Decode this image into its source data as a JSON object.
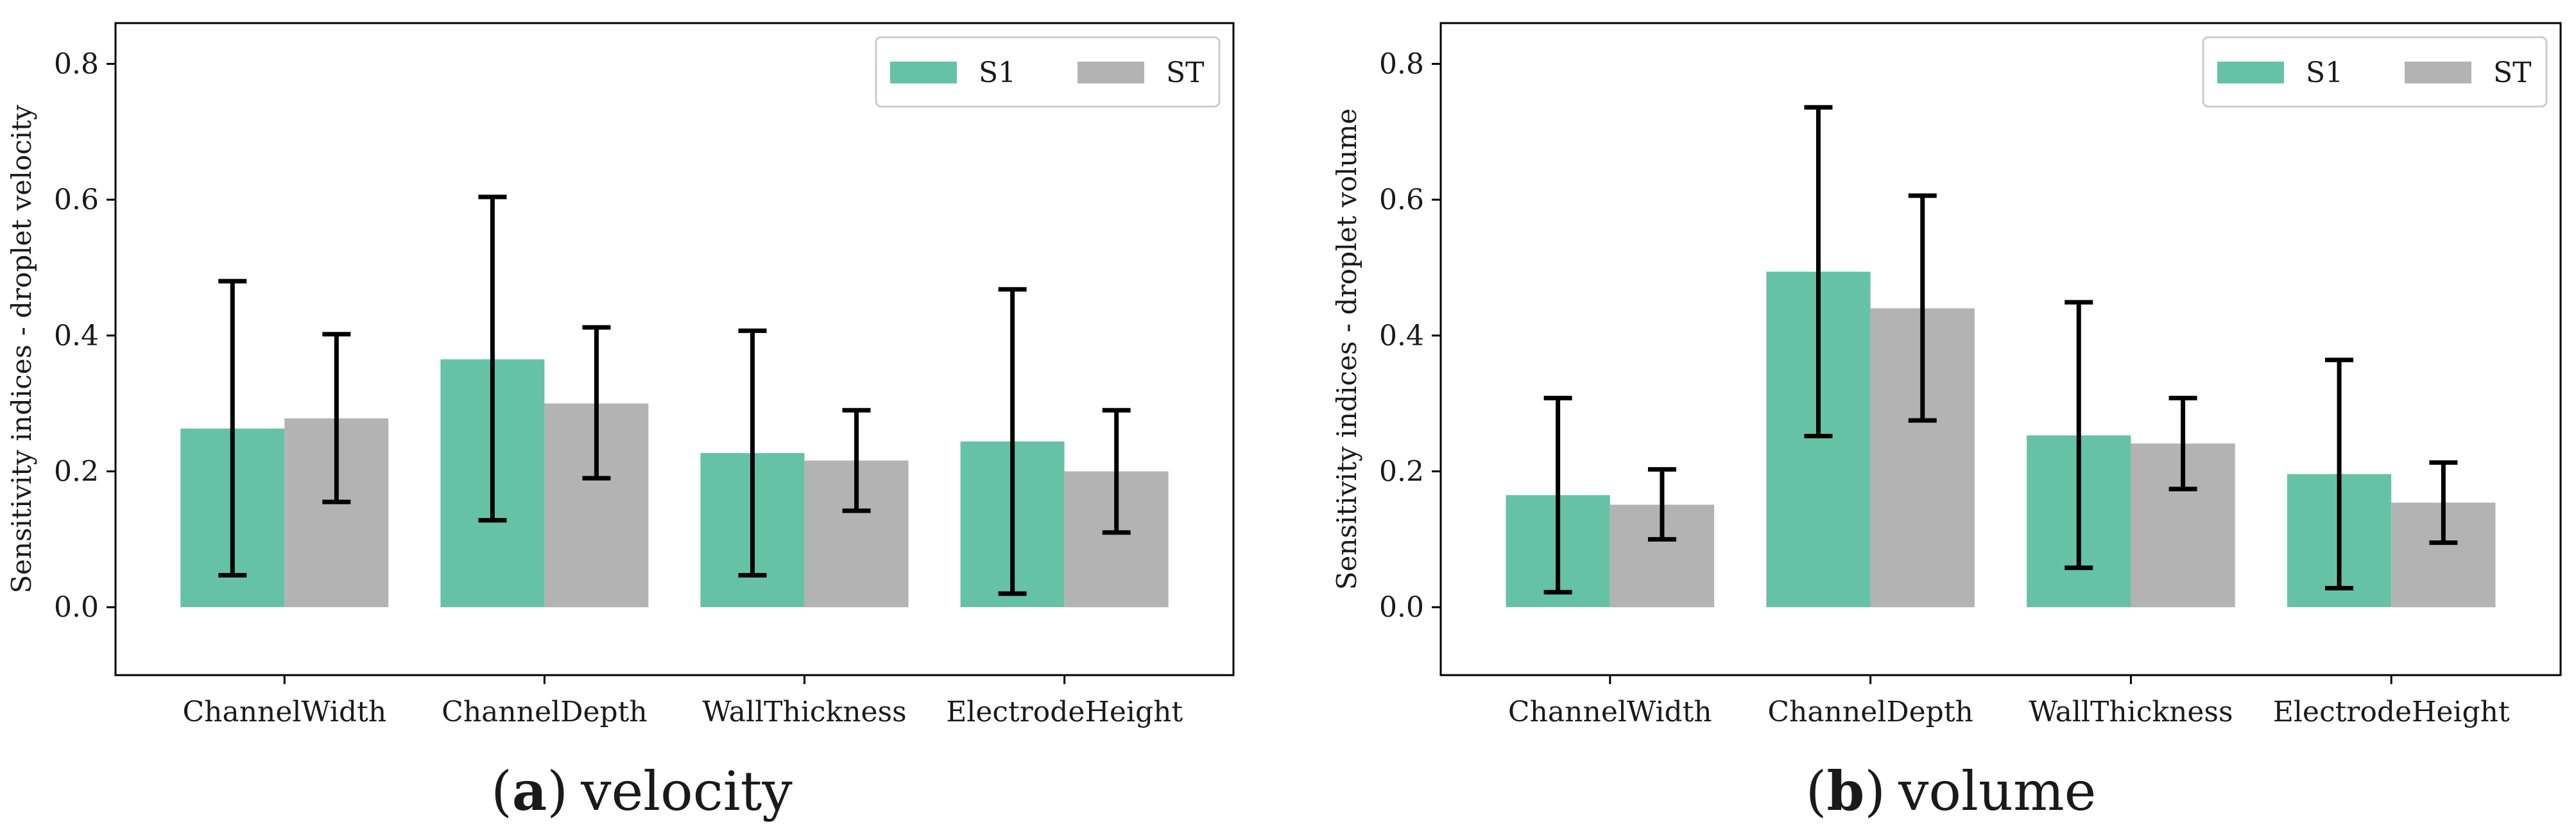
{
  "colors": {
    "S1": "#66c2a5",
    "ST": "#b3b3b3",
    "error_bar": "#000000",
    "axes": "#000000",
    "legend_border": "#cccccc"
  },
  "captions": [
    {
      "open": "(",
      "letter": "a",
      "close": ")",
      "text": "velocity"
    },
    {
      "open": "(",
      "letter": "b",
      "close": ")",
      "text": "volume"
    }
  ],
  "chart_data": [
    {
      "type": "bar",
      "title": "",
      "xlabel": "",
      "ylabel": "Sensitivity indices - droplet velocity",
      "categories": [
        "ChannelWidth",
        "ChannelDepth",
        "WallThickness",
        "ElectrodeHeight"
      ],
      "ylim": [
        -0.1,
        0.86
      ],
      "yticks": [
        0.0,
        0.2,
        0.4,
        0.6,
        0.8
      ],
      "ytick_labels": [
        "0.0",
        "0.2",
        "0.4",
        "0.6",
        "0.8"
      ],
      "grid": false,
      "legend_position": "top-right",
      "series": [
        {
          "name": "S1",
          "values": [
            0.263,
            0.365,
            0.227,
            0.244
          ],
          "error_low": [
            0.047,
            0.128,
            0.047,
            0.02
          ],
          "error_high": [
            0.48,
            0.604,
            0.407,
            0.468
          ]
        },
        {
          "name": "ST",
          "values": [
            0.278,
            0.3,
            0.216,
            0.2
          ],
          "error_low": [
            0.155,
            0.19,
            0.142,
            0.11
          ],
          "error_high": [
            0.402,
            0.412,
            0.29,
            0.29
          ]
        }
      ]
    },
    {
      "type": "bar",
      "title": "",
      "xlabel": "",
      "ylabel": "Sensitivity indices - droplet volume",
      "categories": [
        "ChannelWidth",
        "ChannelDepth",
        "WallThickness",
        "ElectrodeHeight"
      ],
      "ylim": [
        -0.1,
        0.86
      ],
      "yticks": [
        0.0,
        0.2,
        0.4,
        0.6,
        0.8
      ],
      "ytick_labels": [
        "0.0",
        "0.2",
        "0.4",
        "0.6",
        "0.8"
      ],
      "grid": false,
      "legend_position": "top-right",
      "series": [
        {
          "name": "S1",
          "values": [
            0.165,
            0.494,
            0.253,
            0.196
          ],
          "error_low": [
            0.022,
            0.252,
            0.058,
            0.028
          ],
          "error_high": [
            0.308,
            0.736,
            0.449,
            0.364
          ]
        },
        {
          "name": "ST",
          "values": [
            0.151,
            0.44,
            0.241,
            0.154
          ],
          "error_low": [
            0.1,
            0.275,
            0.174,
            0.095
          ],
          "error_high": [
            0.203,
            0.606,
            0.308,
            0.213
          ]
        }
      ]
    }
  ]
}
